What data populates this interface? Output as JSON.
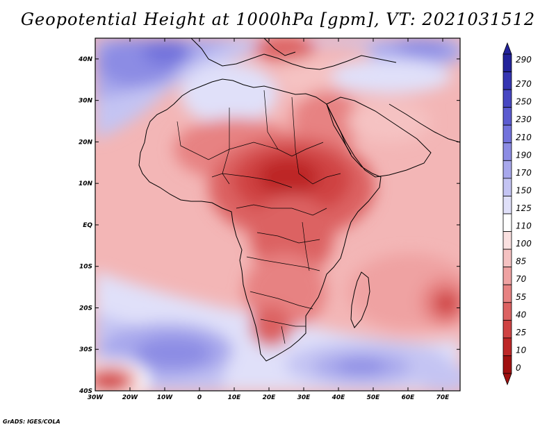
{
  "title": "Geopotential Height at 1000hPa [gpm], VT: 2021031512",
  "credit": "GrADS: IGES/COLA",
  "map": {
    "lat_labels": [
      "40N",
      "30N",
      "20N",
      "10N",
      "EQ",
      "10S",
      "20S",
      "30S",
      "40S"
    ],
    "lat_values": [
      40,
      30,
      20,
      10,
      0,
      -10,
      -20,
      -30,
      -40
    ],
    "lon_labels": [
      "30W",
      "20W",
      "10W",
      "0",
      "10E",
      "20E",
      "30E",
      "40E",
      "50E",
      "60E",
      "70E"
    ],
    "lon_values": [
      -30,
      -20,
      -10,
      0,
      10,
      20,
      30,
      40,
      50,
      60,
      70
    ],
    "lon_range": [
      -30,
      75
    ],
    "lat_range": [
      -40,
      45
    ]
  },
  "colorbar": {
    "labels": [
      "290",
      "270",
      "250",
      "230",
      "210",
      "190",
      "170",
      "150",
      "125",
      "110",
      "100",
      "85",
      "70",
      "55",
      "40",
      "25",
      "10",
      "0"
    ],
    "colors": [
      "#22229a",
      "#3535b2",
      "#4747c2",
      "#5b5bd0",
      "#7272dc",
      "#8c8ce4",
      "#a8a8ec",
      "#c4c4f3",
      "#e0e0f9",
      "#ffffff",
      "#fae0e0",
      "#f5c2c2",
      "#efa2a2",
      "#e78282",
      "#dc6262",
      "#cf4343",
      "#bd2727",
      "#a01010"
    ]
  },
  "colors": {
    "land_outline": "#000000",
    "low_center": "#a01010"
  }
}
